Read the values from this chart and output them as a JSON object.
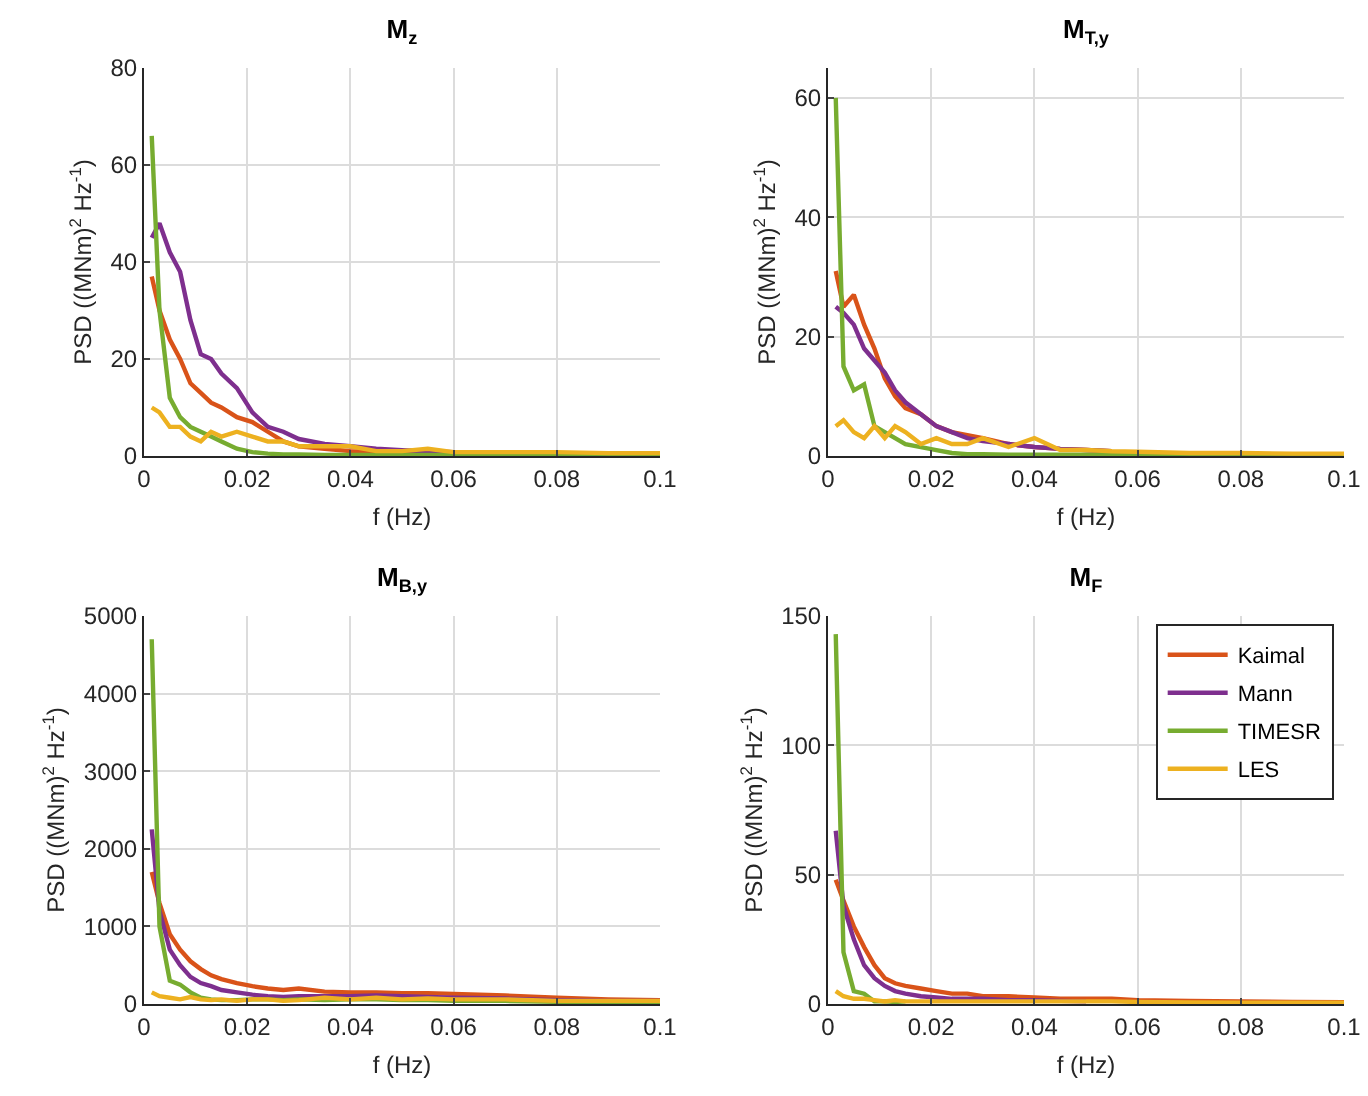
{
  "chart_data": [
    {
      "type": "line",
      "title": "M$_{z}$",
      "xlabel": "f (Hz)",
      "ylabel": "PSD ((MNm)$^{2}$ Hz$^{-1}$)",
      "xlim": [
        0,
        0.1
      ],
      "xticks": [
        0,
        0.02,
        0.04,
        0.06,
        0.08,
        0.1
      ],
      "ylim": [
        0,
        80
      ],
      "yticks": [
        0,
        20,
        40,
        60,
        80
      ],
      "grid": true,
      "legend": false,
      "line_style": "solid",
      "x": [
        0.0015,
        0.003,
        0.005,
        0.007,
        0.009,
        0.011,
        0.013,
        0.015,
        0.018,
        0.021,
        0.024,
        0.027,
        0.03,
        0.035,
        0.04,
        0.045,
        0.05,
        0.055,
        0.06,
        0.07,
        0.08,
        0.09,
        0.1
      ],
      "series": [
        {
          "color": "#d95319",
          "values": [
            37,
            30,
            24,
            20,
            15,
            13,
            11,
            10,
            8,
            7,
            5,
            3,
            2,
            1.5,
            1,
            0.8,
            0.6,
            0.5,
            0.4,
            0.3,
            null,
            null,
            null
          ]
        },
        {
          "color": "#7e2f8e",
          "values": [
            45,
            48,
            42,
            38,
            28,
            21,
            20,
            17,
            14,
            9,
            6,
            5,
            3.5,
            2.5,
            2,
            1.5,
            1.2,
            1,
            0.8,
            0.6,
            null,
            null,
            null
          ]
        },
        {
          "color": "#77ac30",
          "values": [
            66,
            30,
            12,
            8,
            6,
            5,
            4,
            3,
            1.5,
            0.8,
            0.5,
            0.3,
            0.3,
            0.2,
            0.2,
            0.2,
            0.2,
            0.2,
            0.2,
            0.2,
            0.2,
            0.2,
            0.2
          ]
        },
        {
          "color": "#edb120",
          "values": [
            10,
            9,
            6,
            6,
            4,
            3,
            5,
            4,
            5,
            4,
            3,
            3,
            2,
            2,
            2,
            1,
            1,
            1.5,
            0.8,
            0.8,
            0.8,
            0.6,
            0.6
          ]
        }
      ]
    },
    {
      "type": "line",
      "title": "M$_{T,y}$",
      "xlabel": "f (Hz)",
      "ylabel": "PSD ((MNm)$^{2}$ Hz$^{-1}$)",
      "xlim": [
        0,
        0.1
      ],
      "xticks": [
        0,
        0.02,
        0.04,
        0.06,
        0.08,
        0.1
      ],
      "ylim": [
        0,
        65
      ],
      "yticks": [
        0,
        20,
        40,
        60
      ],
      "grid": true,
      "legend": false,
      "line_style": "solid",
      "x": [
        0.0015,
        0.003,
        0.005,
        0.007,
        0.009,
        0.011,
        0.013,
        0.015,
        0.018,
        0.021,
        0.024,
        0.027,
        0.03,
        0.035,
        0.04,
        0.045,
        0.05,
        0.055,
        0.06,
        0.07,
        0.08,
        0.09,
        0.1
      ],
      "series": [
        {
          "color": "#d95319",
          "values": [
            31,
            25,
            27,
            22,
            18,
            13,
            10,
            8,
            7,
            5,
            4,
            3.5,
            3,
            2,
            1.5,
            1.2,
            1,
            0.8,
            null,
            null,
            null,
            null,
            null
          ]
        },
        {
          "color": "#7e2f8e",
          "values": [
            25,
            24,
            22,
            18,
            16,
            14,
            11,
            9,
            7,
            5,
            4,
            3,
            2.5,
            2,
            1.5,
            1.2,
            1,
            0.8,
            null,
            null,
            null,
            null,
            null
          ]
        },
        {
          "color": "#77ac30",
          "values": [
            60,
            15,
            11,
            12,
            5,
            4,
            3,
            2,
            1.5,
            1,
            0.5,
            0.3,
            0.3,
            0.2,
            0.2,
            0.2,
            0.2,
            0.2,
            0.2,
            0.2,
            0.2,
            0.2,
            0.2
          ]
        },
        {
          "color": "#edb120",
          "values": [
            5,
            6,
            4,
            3,
            5,
            3,
            5,
            4,
            2,
            3,
            2,
            2,
            3,
            1.5,
            3,
            1,
            1,
            0.8,
            0.7,
            0.5,
            0.5,
            0.4,
            0.4
          ]
        }
      ]
    },
    {
      "type": "line",
      "title": "M$_{B,y}$",
      "xlabel": "f (Hz)",
      "ylabel": "PSD ((MNm)$^{2}$ Hz$^{-1}$)",
      "xlim": [
        0,
        0.1
      ],
      "xticks": [
        0,
        0.02,
        0.04,
        0.06,
        0.08,
        0.1
      ],
      "ylim": [
        0,
        5000
      ],
      "yticks": [
        0,
        1000,
        2000,
        3000,
        4000,
        5000
      ],
      "grid": true,
      "legend": false,
      "line_style": "solid",
      "x": [
        0.0015,
        0.003,
        0.005,
        0.007,
        0.009,
        0.011,
        0.013,
        0.015,
        0.018,
        0.021,
        0.024,
        0.027,
        0.03,
        0.035,
        0.04,
        0.045,
        0.05,
        0.055,
        0.06,
        0.07,
        0.08,
        0.09,
        0.1
      ],
      "series": [
        {
          "color": "#d95319",
          "values": [
            1700,
            1300,
            900,
            700,
            550,
            450,
            370,
            320,
            270,
            230,
            200,
            180,
            200,
            160,
            150,
            150,
            140,
            140,
            130,
            110,
            80,
            60,
            50
          ]
        },
        {
          "color": "#7e2f8e",
          "values": [
            2250,
            1200,
            700,
            500,
            350,
            270,
            230,
            180,
            150,
            120,
            100,
            90,
            100,
            100,
            100,
            110,
            100,
            90,
            80,
            70,
            50,
            40,
            40
          ]
        },
        {
          "color": "#77ac30",
          "values": [
            4700,
            1000,
            300,
            250,
            150,
            80,
            60,
            50,
            50,
            60,
            60,
            50,
            60,
            50,
            60,
            60,
            50,
            50,
            40,
            40,
            30,
            30,
            30
          ]
        },
        {
          "color": "#edb120",
          "values": [
            150,
            100,
            80,
            60,
            90,
            60,
            50,
            60,
            40,
            60,
            60,
            40,
            50,
            80,
            60,
            80,
            60,
            70,
            60,
            60,
            40,
            40,
            40
          ]
        }
      ]
    },
    {
      "type": "line",
      "title": "M$_{F}$",
      "xlabel": "f (Hz)",
      "ylabel": "PSD ((MNm)$^{2}$ Hz$^{-1}$)",
      "xlim": [
        0,
        0.1
      ],
      "xticks": [
        0,
        0.02,
        0.04,
        0.06,
        0.08,
        0.1
      ],
      "ylim": [
        0,
        150
      ],
      "yticks": [
        0,
        50,
        100,
        150
      ],
      "grid": true,
      "legend": "top right",
      "line_style": "solid",
      "x": [
        0.0015,
        0.003,
        0.005,
        0.007,
        0.009,
        0.011,
        0.013,
        0.015,
        0.018,
        0.021,
        0.024,
        0.027,
        0.03,
        0.035,
        0.04,
        0.045,
        0.05,
        0.055,
        0.06,
        0.07,
        0.08,
        0.09,
        0.1
      ],
      "series": [
        {
          "name": "Kaimal",
          "color": "#d95319",
          "values": [
            48,
            40,
            30,
            22,
            15,
            10,
            8,
            7,
            6,
            5,
            4,
            4,
            3,
            3,
            2.5,
            2,
            2,
            2,
            1.5,
            1.2,
            1,
            0.8,
            0.7
          ]
        },
        {
          "name": "Mann",
          "color": "#7e2f8e",
          "values": [
            67,
            38,
            25,
            15,
            10,
            7,
            5,
            4,
            3,
            2.5,
            2,
            2,
            2,
            1.5,
            1.5,
            1.2,
            1,
            null,
            null,
            null,
            null,
            null,
            null
          ]
        },
        {
          "name": "TIMESR",
          "color": "#77ac30",
          "values": [
            143,
            20,
            5,
            4,
            1,
            1,
            0.8,
            1,
            null,
            null,
            null,
            null,
            null,
            null,
            null,
            null,
            null,
            null,
            null,
            null,
            null,
            null,
            null
          ]
        },
        {
          "name": "LES",
          "color": "#edb120",
          "values": [
            5,
            3,
            2,
            2,
            1.5,
            1,
            1.5,
            1,
            1,
            1,
            1,
            1,
            1,
            1,
            1,
            1,
            1,
            1,
            0.8,
            0.6,
            0.5,
            0.5,
            0.5
          ]
        }
      ]
    }
  ]
}
